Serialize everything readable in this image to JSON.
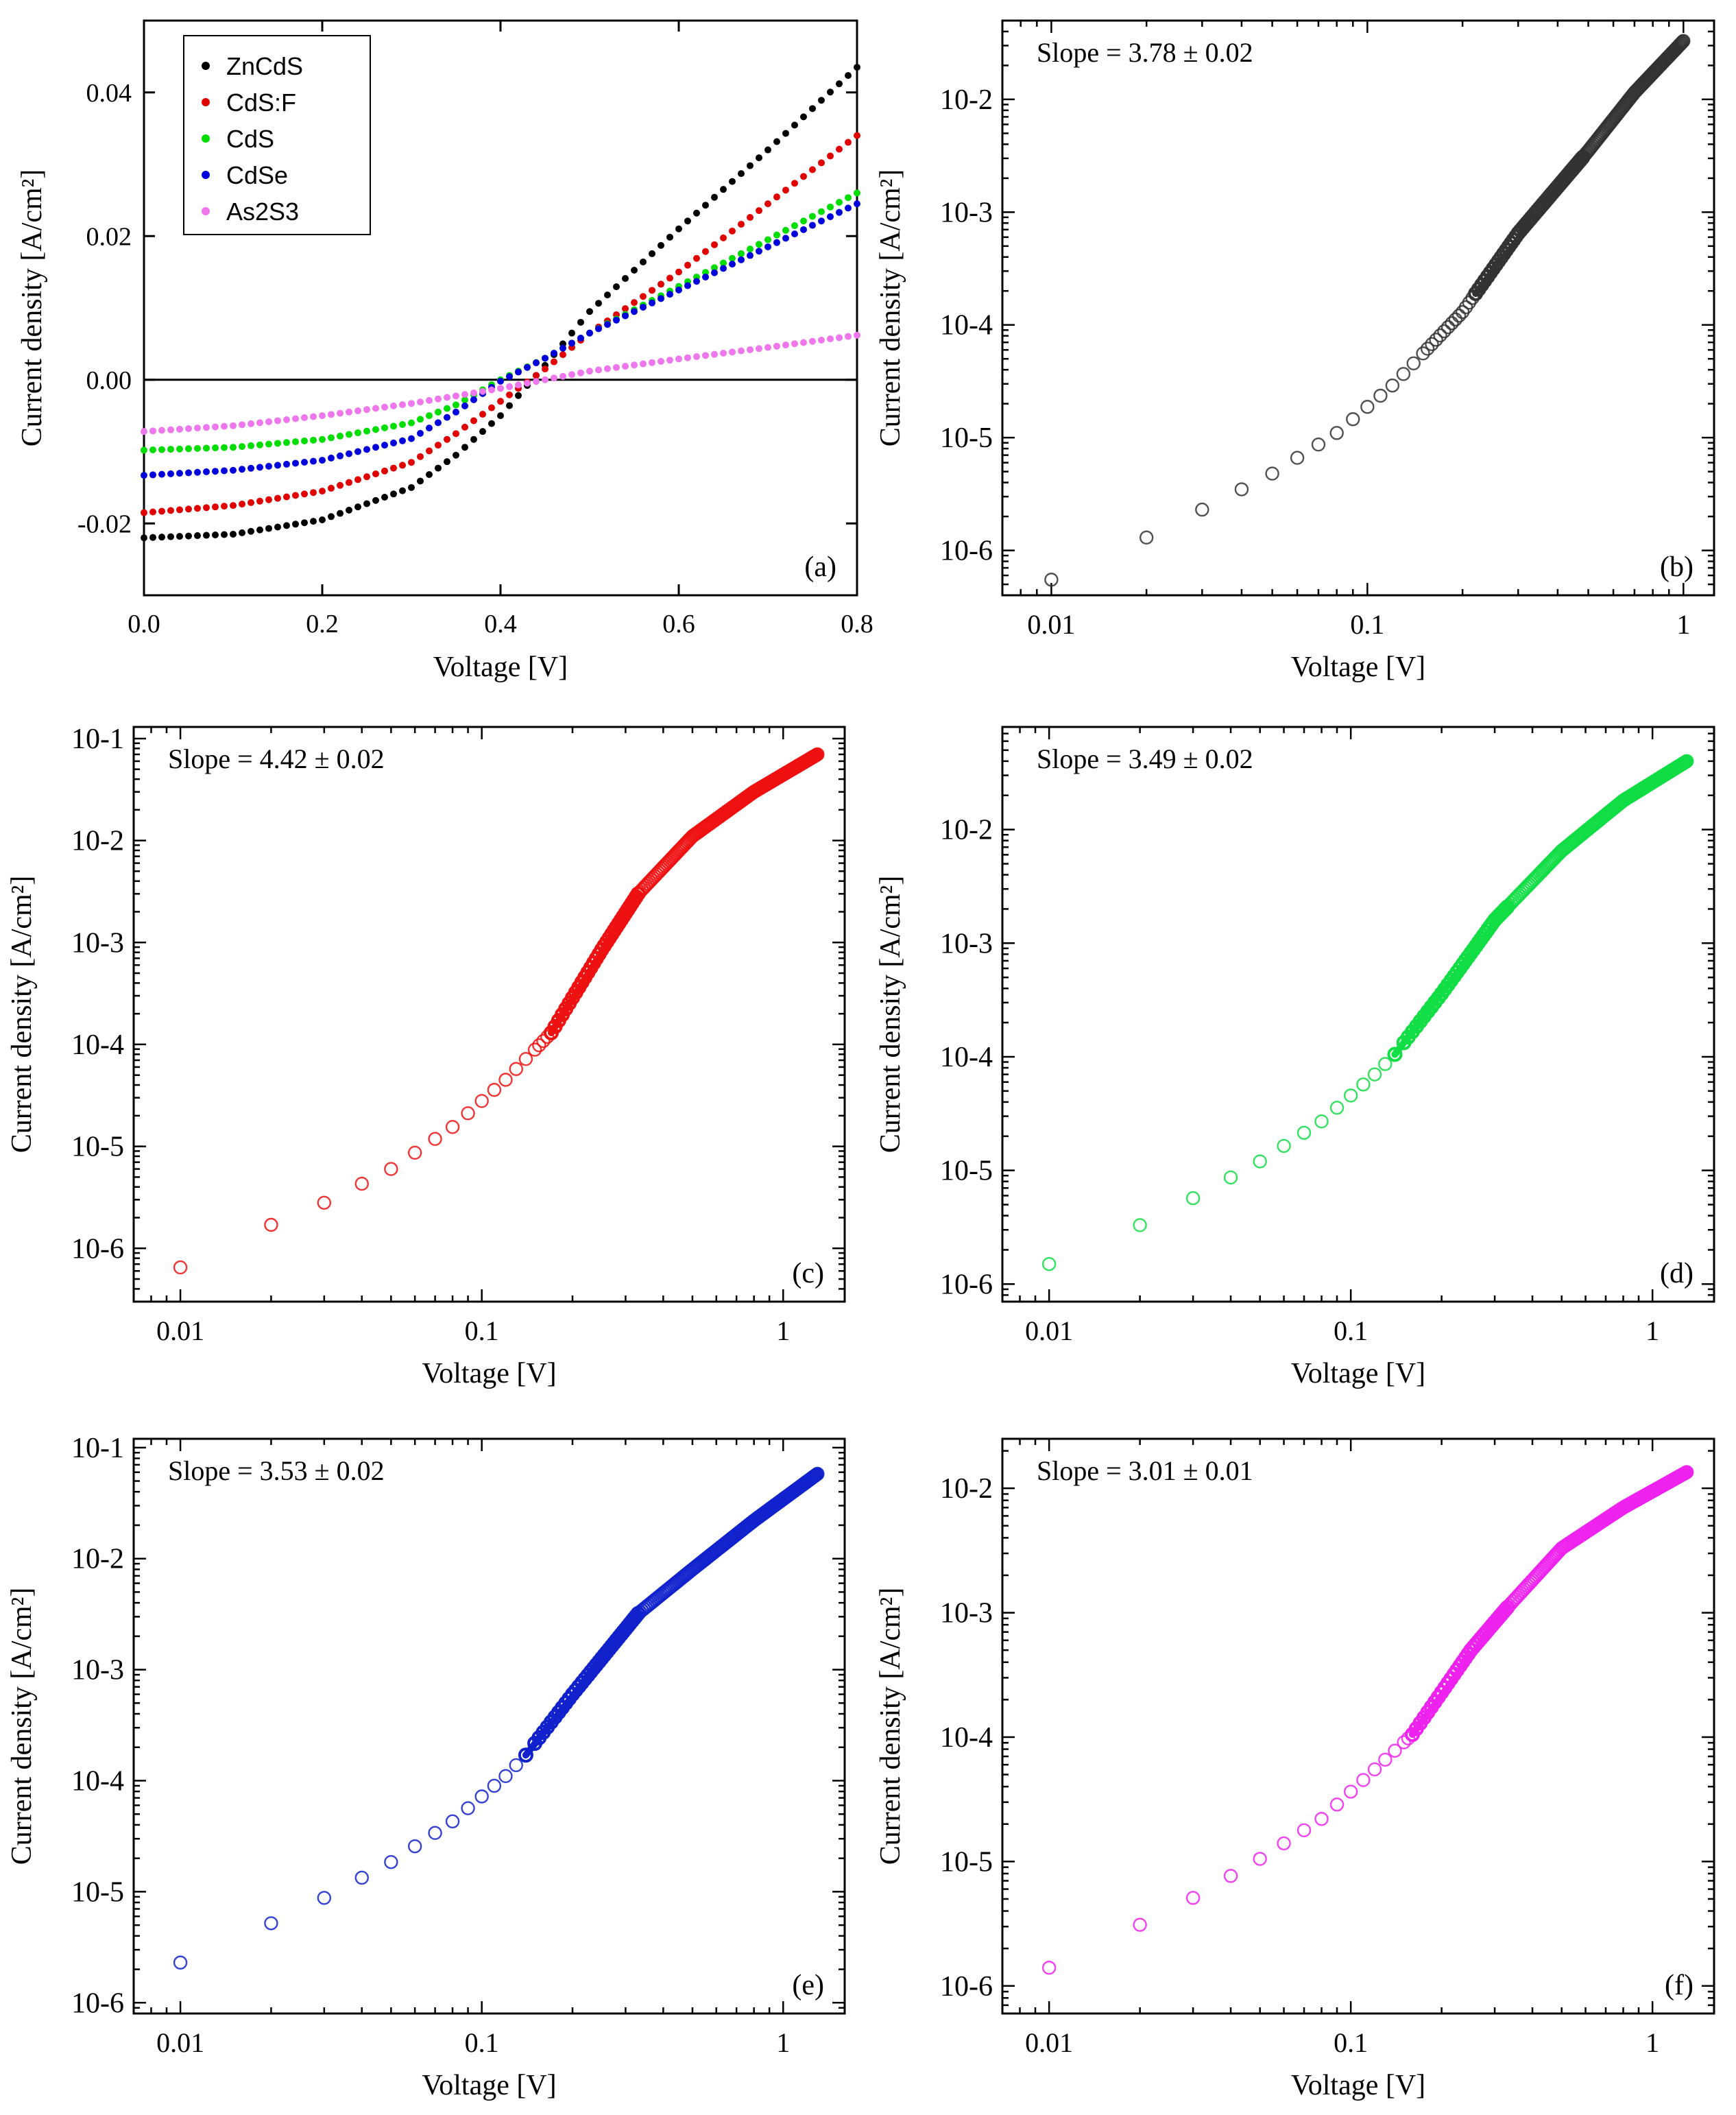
{
  "chart_data": [
    {
      "id": "a",
      "type": "scatter",
      "scale": "linear",
      "panel_label": "(a)",
      "xlabel": "Voltage [V]",
      "ylabel": "Current density [A/cm²]",
      "xlim": [
        0.0,
        0.8
      ],
      "ylim": [
        -0.03,
        0.05
      ],
      "x_ticks": [
        0.0,
        0.2,
        0.4,
        0.6,
        0.8
      ],
      "x_tick_labels": [
        "0.0",
        "0.2",
        "0.4",
        "0.6",
        "0.8"
      ],
      "y_ticks": [
        -0.02,
        0.0,
        0.02,
        0.04
      ],
      "y_tick_labels": [
        "-0.02",
        "0.00",
        "0.02",
        "0.04"
      ],
      "zero_line": 0.0,
      "legend": [
        "ZnCdS",
        "CdS:F",
        "CdS",
        "CdSe",
        "As2S3"
      ],
      "legend_position": "top-left",
      "series": [
        {
          "name": "ZnCdS",
          "color": "#000000",
          "x": [
            0.0,
            0.1,
            0.2,
            0.3,
            0.35,
            0.4,
            0.45,
            0.5,
            0.6,
            0.7,
            0.8
          ],
          "y": [
            -0.022,
            -0.0215,
            -0.0195,
            -0.015,
            -0.0105,
            -0.005,
            0.002,
            0.0095,
            0.021,
            0.032,
            0.0435
          ]
        },
        {
          "name": "CdS:F",
          "color": "#e00000",
          "x": [
            0.0,
            0.1,
            0.2,
            0.3,
            0.35,
            0.4,
            0.45,
            0.5,
            0.6,
            0.7,
            0.8
          ],
          "y": [
            -0.0185,
            -0.0175,
            -0.0155,
            -0.0115,
            -0.0075,
            -0.003,
            0.0015,
            0.0065,
            0.015,
            0.0245,
            0.034
          ]
        },
        {
          "name": "CdS",
          "color": "#00dd00",
          "x": [
            0.0,
            0.1,
            0.2,
            0.3,
            0.35,
            0.4,
            0.45,
            0.5,
            0.6,
            0.7,
            0.8
          ],
          "y": [
            -0.0098,
            -0.0094,
            -0.0083,
            -0.006,
            -0.0035,
            0.0,
            0.003,
            0.0065,
            0.013,
            0.0195,
            0.026
          ]
        },
        {
          "name": "CdSe",
          "color": "#0000dd",
          "x": [
            0.0,
            0.1,
            0.2,
            0.3,
            0.35,
            0.4,
            0.45,
            0.5,
            0.6,
            0.7,
            0.8
          ],
          "y": [
            -0.0133,
            -0.0126,
            -0.0112,
            -0.0082,
            -0.0045,
            -0.0002,
            0.003,
            0.0065,
            0.0125,
            0.0185,
            0.0245
          ]
        },
        {
          "name": "As2S3",
          "color": "#ee77ee",
          "x": [
            0.0,
            0.1,
            0.2,
            0.3,
            0.4,
            0.45,
            0.5,
            0.6,
            0.7,
            0.8
          ],
          "y": [
            -0.0072,
            -0.0064,
            -0.005,
            -0.0033,
            -0.0012,
            0.0,
            0.0012,
            0.0029,
            0.0045,
            0.0062
          ]
        }
      ]
    },
    {
      "id": "b",
      "type": "scatter",
      "scale": "log-log",
      "panel_label": "(b)",
      "annotation": "Slope = 3.78 ± 0.02",
      "xlabel": "Voltage [V]",
      "ylabel": "Current density [A/cm²]",
      "xlim": [
        0.007,
        1.25
      ],
      "ylim": [
        4e-07,
        0.05
      ],
      "x_ticks": [
        0.01,
        0.1,
        1
      ],
      "x_tick_labels": [
        "0.01",
        "0.1",
        "1"
      ],
      "y_ticks": [
        1e-06,
        1e-05,
        0.0001,
        0.001,
        0.01
      ],
      "y_tick_labels": [
        "10-6",
        "10-5",
        "10-4",
        "10-3",
        "10-2"
      ],
      "color": "#333333",
      "fit_range": [
        0.22,
        0.48
      ],
      "curve_x": [
        0.01,
        0.02,
        0.03,
        0.05,
        0.08,
        0.12,
        0.2,
        0.3,
        0.5,
        0.7,
        1.0
      ],
      "curve_y": [
        5.5e-07,
        1.3e-06,
        2.3e-06,
        4.8e-06,
        1.1e-05,
        2.9e-05,
        0.00013,
        0.00065,
        0.0035,
        0.0115,
        0.033
      ]
    },
    {
      "id": "c",
      "type": "scatter",
      "scale": "log-log",
      "panel_label": "(c)",
      "annotation": "Slope = 4.42 ± 0.02",
      "xlabel": "Voltage [V]",
      "ylabel": "Current density [A/cm²]",
      "xlim": [
        0.007,
        1.6
      ],
      "ylim": [
        3e-07,
        0.13
      ],
      "x_ticks": [
        0.01,
        0.1,
        1
      ],
      "x_tick_labels": [
        "0.01",
        "0.1",
        "1"
      ],
      "y_ticks": [
        1e-06,
        1e-05,
        0.0001,
        0.001,
        0.01,
        0.1
      ],
      "y_tick_labels": [
        "10-6",
        "10-5",
        "10-4",
        "10-3",
        "10-2",
        "10-1"
      ],
      "color": "#ee1111",
      "fit_range": [
        0.17,
        0.33
      ],
      "curve_x": [
        0.01,
        0.02,
        0.03,
        0.05,
        0.08,
        0.12,
        0.17,
        0.25,
        0.33,
        0.5,
        0.8,
        1.3
      ],
      "curve_y": [
        6.5e-07,
        1.7e-06,
        2.8e-06,
        6e-06,
        1.55e-05,
        4.5e-05,
        0.00013,
        0.00085,
        0.003,
        0.011,
        0.03,
        0.07
      ]
    },
    {
      "id": "d",
      "type": "scatter",
      "scale": "log-log",
      "panel_label": "(d)",
      "annotation": "Slope = 3.49 ± 0.02",
      "xlabel": "Voltage [V]",
      "ylabel": "Current density [A/cm²]",
      "xlim": [
        0.007,
        1.6
      ],
      "ylim": [
        7e-07,
        0.08
      ],
      "x_ticks": [
        0.01,
        0.1,
        1
      ],
      "x_tick_labels": [
        "0.01",
        "0.1",
        "1"
      ],
      "y_ticks": [
        1e-06,
        1e-05,
        0.0001,
        0.001,
        0.01
      ],
      "y_tick_labels": [
        "10-6",
        "10-5",
        "10-4",
        "10-3",
        "10-2"
      ],
      "color": "#11dd44",
      "fit_range": [
        0.14,
        0.33
      ],
      "curve_x": [
        0.01,
        0.02,
        0.03,
        0.05,
        0.08,
        0.12,
        0.14,
        0.2,
        0.3,
        0.5,
        0.8,
        1.3
      ],
      "curve_y": [
        1.5e-06,
        3.3e-06,
        5.7e-06,
        1.2e-05,
        2.7e-05,
        7e-05,
        0.000105,
        0.00036,
        0.0016,
        0.0065,
        0.018,
        0.04
      ]
    },
    {
      "id": "e",
      "type": "scatter",
      "scale": "log-log",
      "panel_label": "(e)",
      "annotation": "Slope = 3.53 ± 0.02",
      "xlabel": "Voltage [V]",
      "ylabel": "Current density [A/cm²]",
      "xlim": [
        0.007,
        1.6
      ],
      "ylim": [
        8e-07,
        0.12
      ],
      "x_ticks": [
        0.01,
        0.1,
        1
      ],
      "x_tick_labels": [
        "0.01",
        "0.1",
        "1"
      ],
      "y_ticks": [
        1e-06,
        1e-05,
        0.0001,
        0.001,
        0.01,
        0.1
      ],
      "y_tick_labels": [
        "10-6",
        "10-5",
        "10-4",
        "10-3",
        "10-2",
        "10-1"
      ],
      "color": "#1122cc",
      "fit_range": [
        0.14,
        0.33
      ],
      "curve_x": [
        0.01,
        0.02,
        0.03,
        0.05,
        0.08,
        0.12,
        0.14,
        0.2,
        0.33,
        0.5,
        0.8,
        1.3
      ],
      "curve_y": [
        2.3e-06,
        5.2e-06,
        8.8e-06,
        1.85e-05,
        4.3e-05,
        0.00011,
        0.00017,
        0.0006,
        0.0032,
        0.008,
        0.022,
        0.058
      ]
    },
    {
      "id": "f",
      "type": "scatter",
      "scale": "log-log",
      "panel_label": "(f)",
      "annotation": "Slope = 3.01 ± 0.01",
      "xlabel": "Voltage [V]",
      "ylabel": "Current density [A/cm²]",
      "xlim": [
        0.007,
        1.6
      ],
      "ylim": [
        6e-07,
        0.025
      ],
      "x_ticks": [
        0.01,
        0.1,
        1
      ],
      "x_tick_labels": [
        "0.01",
        "0.1",
        "1"
      ],
      "y_ticks": [
        1e-06,
        1e-05,
        0.0001,
        0.001,
        0.01
      ],
      "y_tick_labels": [
        "10-6",
        "10-5",
        "10-4",
        "10-3",
        "10-2"
      ],
      "color": "#ee22ee",
      "fit_range": [
        0.16,
        0.33
      ],
      "curve_x": [
        0.01,
        0.02,
        0.03,
        0.05,
        0.08,
        0.12,
        0.16,
        0.25,
        0.33,
        0.5,
        0.8,
        1.3
      ],
      "curve_y": [
        1.4e-06,
        3.1e-06,
        5.1e-06,
        1.05e-05,
        2.2e-05,
        5.5e-05,
        0.000105,
        0.0005,
        0.0011,
        0.0033,
        0.007,
        0.0135
      ]
    }
  ]
}
